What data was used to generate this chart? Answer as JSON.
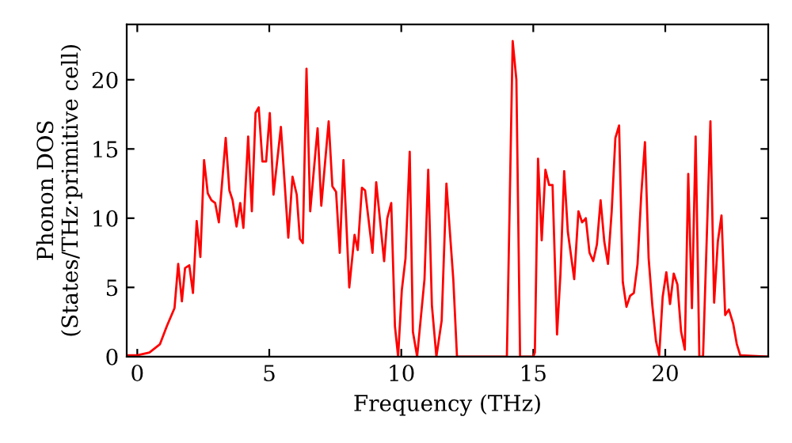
{
  "chart_data": {
    "type": "line",
    "xlabel": "Frequency (THz)",
    "ylabel": "Phonon DOS\n(States/THz·primitive cell)",
    "x": [
      -0.34,
      0,
      0.46,
      0.86,
      1.12,
      1.41,
      1.55,
      1.69,
      1.81,
      1.97,
      2.11,
      2.25,
      2.39,
      2.53,
      2.67,
      2.81,
      2.95,
      3.09,
      3.35,
      3.49,
      3.61,
      3.76,
      3.9,
      4.02,
      4.2,
      4.34,
      4.48,
      4.6,
      4.74,
      4.88,
      5.02,
      5.16,
      5.44,
      5.72,
      5.88,
      6.04,
      6.16,
      6.27,
      6.41,
      6.55,
      6.83,
      6.97,
      7.25,
      7.39,
      7.53,
      7.67,
      7.81,
      8.03,
      8.23,
      8.35,
      8.51,
      8.63,
      8.91,
      9.05,
      9.35,
      9.47,
      9.62,
      9.76,
      9.88,
      10.02,
      10.16,
      10.32,
      10.44,
      10.6,
      10.88,
      11.02,
      11.16,
      11.33,
      11.53,
      11.71,
      11.97,
      12.11,
      14.0,
      14.22,
      14.36,
      14.5,
      15.0,
      15.06,
      15.18,
      15.32,
      15.46,
      15.6,
      15.73,
      15.9,
      16.03,
      16.17,
      16.31,
      16.55,
      16.71,
      16.85,
      16.99,
      17.13,
      17.27,
      17.41,
      17.55,
      17.69,
      17.83,
      17.97,
      18.11,
      18.25,
      18.39,
      18.53,
      18.67,
      18.81,
      18.95,
      19.09,
      19.23,
      19.37,
      19.51,
      19.65,
      19.77,
      19.9,
      20.04,
      20.18,
      20.32,
      20.46,
      20.6,
      20.74,
      20.87,
      21.01,
      21.15,
      21.29,
      21.43,
      21.71,
      21.85,
      21.99,
      22.13,
      22.27,
      22.41,
      22.57,
      22.71,
      22.84,
      23.88
    ],
    "series": [
      {
        "color": "#ff0000",
        "values": [
          0.1,
          0.1,
          0.3,
          0.9,
          2.2,
          3.5,
          6.7,
          4.0,
          6.4,
          6.6,
          4.6,
          9.8,
          7.2,
          14.2,
          11.8,
          11.3,
          11.1,
          9.7,
          15.8,
          12.0,
          11.3,
          9.4,
          11.1,
          9.3,
          15.9,
          10.5,
          17.6,
          18.0,
          14.1,
          14.1,
          17.6,
          11.7,
          16.6,
          8.6,
          13.0,
          11.7,
          8.5,
          8.2,
          20.8,
          10.5,
          16.5,
          10.9,
          17.0,
          12.3,
          11.9,
          7.5,
          14.2,
          5.0,
          8.8,
          7.7,
          12.2,
          12.0,
          7.5,
          12.6,
          6.9,
          10.0,
          11.1,
          2.2,
          0,
          4.8,
          7.1,
          14.8,
          1.8,
          0,
          5.6,
          13.5,
          3.7,
          0,
          2.6,
          12.5,
          5.6,
          0,
          0,
          22.8,
          20.0,
          0,
          0,
          0.3,
          14.3,
          8.4,
          13.5,
          12.4,
          12.4,
          1.6,
          6.0,
          13.4,
          9.0,
          5.6,
          10.5,
          9.7,
          10.0,
          7.5,
          6.9,
          8.1,
          11.3,
          8.3,
          6.7,
          10.5,
          15.8,
          16.7,
          5.4,
          3.6,
          4.4,
          4.6,
          6.7,
          11.7,
          15.5,
          7.1,
          3.7,
          1.1,
          0.1,
          4.3,
          6.1,
          3.8,
          6.0,
          5.2,
          1.8,
          0.5,
          13.2,
          3.5,
          15.9,
          0,
          0,
          17.0,
          3.9,
          8.3,
          10.2,
          3.0,
          3.4,
          2.4,
          0.9,
          0.1,
          0
        ]
      }
    ],
    "xlim": [
      -0.4,
      23.9
    ],
    "ylim": [
      0,
      24
    ],
    "xticks": [
      0,
      5,
      10,
      15,
      20
    ],
    "yticks": [
      0,
      5,
      10,
      15,
      20
    ],
    "grid": false,
    "legend": false,
    "marker": "none",
    "line_style": "solid"
  }
}
